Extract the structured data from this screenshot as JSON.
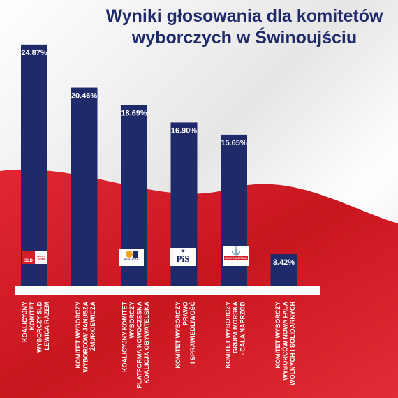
{
  "chart_data": {
    "type": "bar",
    "title_lines": [
      "Wyniki głosowania dla komitetów",
      "wyborczych w Świnoujściu"
    ],
    "categories": [
      [
        "KOALICYJNY",
        "KOMITET",
        "WYBORCZY SLD",
        "LEWICA RAZEM"
      ],
      [
        "KOMITET WYBORCZY",
        "WYBORCÓW JANUSZA",
        "ŻMURKIEWICZA"
      ],
      [
        "KOALICYJNY KOMITET",
        "WYBORCZY",
        "PLATFORMA NOWOCZESNA",
        "KOALICJA OBYWATELSKA"
      ],
      [
        "KOMITET WYBORCZY",
        "PRAWO",
        "I SPRAWIEDLIWOŚĆ"
      ],
      [
        "KOMITET WYBORCZY",
        "GRUPA MORSKA",
        "- CAŁA NAPRZÓD"
      ],
      [
        "KOMITET WYBORCZY",
        "WYBORCÓW NOWA FALA",
        "WOLNYCH I SOLIDARNYCH"
      ]
    ],
    "values": [
      24.87,
      20.46,
      18.69,
      16.9,
      15.65,
      3.42
    ],
    "value_labels": [
      "24.87%",
      "20.46%",
      "18.69%",
      "16.90%",
      "15.65%",
      "3.42%"
    ],
    "bar_color": "#1f2a6b",
    "ylim": [
      0,
      25
    ]
  },
  "logos": {
    "sld": {
      "text_left": "SLD",
      "text_right": "LEWICA RAZEM"
    },
    "ko": {
      "text": "KOALICJA"
    },
    "pis": {
      "text": "PiS"
    },
    "gm": {
      "text": "GRUPA MORSKA"
    }
  },
  "colors": {
    "navy": "#1f2a6b",
    "red": "#d41f2b",
    "white": "#ffffff"
  }
}
